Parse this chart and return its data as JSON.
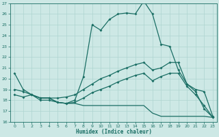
{
  "xlabel": "Humidex (Indice chaleur)",
  "bg_color": "#cde8e5",
  "grid_color": "#aed4d0",
  "line_color": "#1a6e64",
  "xlim": [
    -0.5,
    23.5
  ],
  "ylim": [
    16,
    27
  ],
  "xticks": [
    0,
    1,
    2,
    3,
    4,
    5,
    6,
    7,
    8,
    9,
    10,
    11,
    12,
    13,
    14,
    15,
    16,
    17,
    18,
    19,
    20,
    21,
    22,
    23
  ],
  "yticks": [
    16,
    17,
    18,
    19,
    20,
    21,
    22,
    23,
    24,
    25,
    26,
    27
  ],
  "curve1_x": [
    0,
    1,
    2,
    3,
    4,
    5,
    6,
    7,
    8,
    9,
    10,
    11,
    12,
    13,
    14,
    15,
    16,
    17,
    18,
    19,
    20,
    21,
    22,
    23
  ],
  "curve1_y": [
    20.5,
    19.0,
    18.5,
    18.0,
    18.0,
    17.8,
    17.7,
    18.0,
    20.2,
    25.0,
    24.5,
    25.5,
    26.0,
    26.1,
    26.0,
    27.2,
    26.0,
    23.2,
    23.0,
    20.8,
    19.5,
    18.8,
    17.2,
    16.4
  ],
  "curve2_x": [
    0,
    1,
    2,
    3,
    4,
    5,
    6,
    7,
    8,
    9,
    10,
    11,
    12,
    13,
    14,
    15,
    16,
    17,
    18,
    19,
    20,
    21,
    22,
    23
  ],
  "curve2_y": [
    19.0,
    18.8,
    18.5,
    18.2,
    18.2,
    18.2,
    18.3,
    18.5,
    19.0,
    19.5,
    20.0,
    20.3,
    20.7,
    21.0,
    21.3,
    21.5,
    20.8,
    21.0,
    21.5,
    21.5,
    19.5,
    19.0,
    18.8,
    16.5
  ],
  "curve3_x": [
    0,
    1,
    2,
    3,
    4,
    5,
    6,
    7,
    8,
    9,
    10,
    11,
    12,
    13,
    14,
    15,
    16,
    17,
    18,
    19,
    20,
    21,
    22,
    23
  ],
  "curve3_y": [
    18.5,
    18.3,
    18.5,
    18.2,
    18.2,
    17.8,
    17.7,
    17.8,
    18.2,
    18.7,
    19.0,
    19.3,
    19.7,
    20.0,
    20.3,
    20.5,
    19.8,
    20.2,
    20.5,
    20.5,
    19.3,
    18.5,
    17.5,
    16.4
  ],
  "curve4_x": [
    2,
    3,
    4,
    5,
    6,
    7,
    8,
    9,
    10,
    11,
    12,
    13,
    14,
    15,
    16,
    17,
    18,
    19,
    20,
    21,
    22,
    23
  ],
  "curve4_y": [
    18.5,
    18.2,
    18.2,
    17.8,
    17.7,
    17.7,
    17.5,
    17.5,
    17.5,
    17.5,
    17.5,
    17.5,
    17.5,
    17.5,
    16.8,
    16.5,
    16.5,
    16.5,
    16.5,
    16.5,
    16.5,
    16.4
  ]
}
